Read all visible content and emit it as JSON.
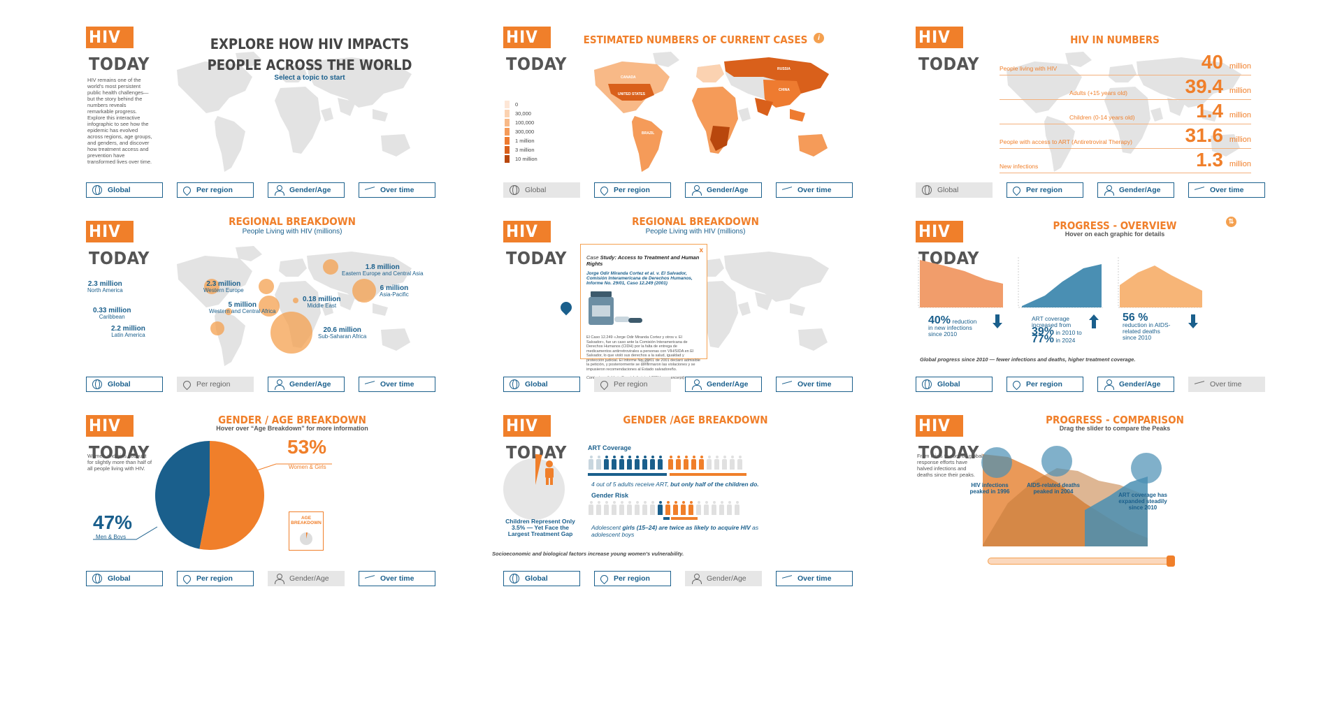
{
  "brand": {
    "hiv": "HIV",
    "today": "TODAY"
  },
  "nav": [
    {
      "label": "Global",
      "icon": "globe-icon"
    },
    {
      "label": "Per region",
      "icon": "location-pin-icon"
    },
    {
      "label": "Gender/Age",
      "icon": "user-icon"
    },
    {
      "label": "Over time",
      "icon": "trend-line-icon"
    }
  ],
  "colors": {
    "orange": "#f07f2a",
    "blue": "#1a5f8c",
    "lightorange": "#f4a04f",
    "grey": "#e3e3e3"
  },
  "panel1": {
    "title": "EXPLORE HOW HIV IMPACTS PEOPLE ACROSS THE WORLD",
    "subtitle": "Select a topic to start",
    "intro": "HIV remains one of the world's most persistent public health challenges—but the story behind the numbers reveals remarkable progress. Explore this interactive infographic to see how the epidemic has evolved across regions, age groups, and genders, and discover how treatment access and prevention have transformed lives over time."
  },
  "panel2": {
    "title": "ESTIMATED NUMBERS OF CURRENT CASES",
    "info_icon": "i",
    "legend": [
      "0",
      "30,000",
      "100,000",
      "300,000",
      "1 million",
      "3 million",
      "10 million"
    ],
    "legend_colors": [
      "#fde6d6",
      "#fbd2b1",
      "#f8b987",
      "#f59b59",
      "#ee7b30",
      "#d9601b",
      "#b8470d"
    ],
    "countries": [
      "CANADA",
      "UNITED STATES",
      "BRAZIL",
      "RUSSIA",
      "CHINA"
    ]
  },
  "panel3": {
    "title": "HIV IN NUMBERS",
    "rows": [
      {
        "label": "People living with HIV",
        "value": "40",
        "unit": "million"
      },
      {
        "label": "Adults (+15 years old)",
        "value": "39.4",
        "unit": "million"
      },
      {
        "label": "Children (0-14 years old)",
        "value": "1.4",
        "unit": "million"
      },
      {
        "label": "People with access to ART (Antiretroviral Therapy)",
        "value": "31.6",
        "unit": "million"
      },
      {
        "label": "New infections",
        "value": "1.3",
        "unit": "million"
      }
    ]
  },
  "panel4": {
    "title": "REGIONAL BREAKDOWN",
    "subtitle": "People Living with HIV (millions)",
    "regions": [
      {
        "value": "2.3 million",
        "name": "North America"
      },
      {
        "value": "2.3 million",
        "name": "Western Europe"
      },
      {
        "value": "1.8 million",
        "name": "Eastern Europe and Central Asia"
      },
      {
        "value": "6 million",
        "name": "Asia-Pacific"
      },
      {
        "value": "0.33 million",
        "name": "Caribbean"
      },
      {
        "value": "5 million",
        "name": "Western and Central Africa"
      },
      {
        "value": "0.18 million",
        "name": "Middle East"
      },
      {
        "value": "2.2 million",
        "name": "Latin America"
      },
      {
        "value": "20.6 million",
        "name": "Sub-Saharan Africa"
      }
    ]
  },
  "panel5": {
    "title": "REGIONAL BREAKDOWN",
    "subtitle": "People Living with HIV (millions)",
    "case": {
      "close": "x",
      "heading_prefix": "Case",
      "heading": "Study: Access to Treatment and Human Rights",
      "citation": "Jorge Odir Miranda Cortez et al. v. El Salvador, Comisión Interamericana de Derechos Humanos, Informe No. 29/01, Caso 12.249 (2001)",
      "body": "El Caso 12.249 «Jorge Odir Miranda Cortez y otros v. El Salvador», fue un caso ante la Comisión Interamericana de Derechos Humanos (CIDH) por la falta de entrega de medicamentos antirretrovirales a personas con VIH/SIDA en El Salvador, lo que violó sus derechos a la salud, igualdad y protección judicial. El Informe No. 29/01 de 2001 declaró admisible la petición, y posteriormente se confirmaron las violaciones y se impusieron recomendaciones al Estado salvadoreño.",
      "note": "Content available in Spanish (original CIDH case excerpt)"
    }
  },
  "panel6": {
    "title": "PROGRESS - OVERVIEW",
    "subtitle": "Hover on each graphic for details",
    "info_icon": "⇅",
    "stats": [
      {
        "big": "40%",
        "text1": "reduction",
        "text2": "in new infections",
        "text3": "since 2010"
      },
      {
        "pre1": "ART coverage",
        "pre2": "increased from",
        "big1": "39%",
        "mid": "in 2010 to",
        "big2": "77%",
        "post": "in 2024"
      },
      {
        "big": "56 %",
        "text1": "reduction in AIDS-",
        "text2": "related deaths",
        "text3": "since 2010"
      }
    ],
    "footer": "Global progress since 2010 — fewer infections and deaths, higher treatment coverage."
  },
  "panel7": {
    "title": "GENDER / AGE BREAKDOWN",
    "subtitle": "Hover over “Age Breakdown” for more information",
    "intro": "Women and girls account for slightly more than half of all people living with HIV.",
    "women_pct": "53%",
    "women_label": "Women & Girls",
    "men_pct": "47%",
    "men_label": "Men & Boys",
    "age_box": "AGE BREAKDOWN",
    "pie_values": [
      53,
      47
    ]
  },
  "panel8": {
    "title": "GENDER /AGE BREAKDOWN",
    "children_caption": "Children Represent Only 3.5% — Yet Face the Largest Treatment Gap",
    "children_share": 3.5,
    "art_label": "ART Coverage",
    "art_caption_a": "4 out of 5 adults receive ART,",
    "art_caption_b": "but only half of the children do.",
    "risk_label": "Gender Risk",
    "risk_caption_a": "Adolescent",
    "risk_caption_b": "girls (15–24) are twice as likely to acquire HIV",
    "risk_caption_c": "as adolescent boys",
    "footer": "Socioeconomic and biological factors increase young women’s vulnerability."
  },
  "panel9": {
    "title": "PROGRESS - COMPARISON",
    "subtitle": "Drag the slider to compare the Peaks",
    "intro": "From crisis to control: global response efforts have halved infections and deaths since their peaks.",
    "labels": [
      {
        "text": "HIV infections peaked in 1996"
      },
      {
        "text": "AIDS-related deaths peaked in 2004"
      },
      {
        "text": "ART coverage has expanded steadily since 2010"
      }
    ],
    "slider_value": 1.0
  }
}
